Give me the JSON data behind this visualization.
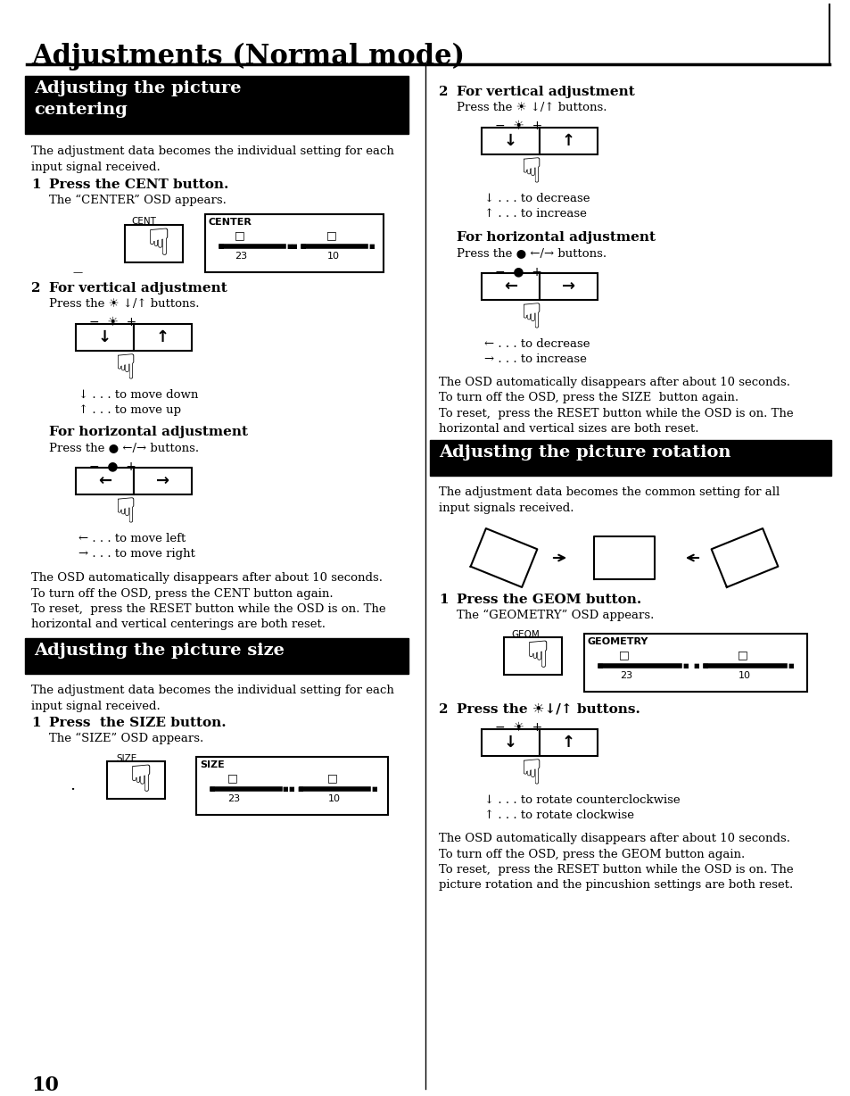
{
  "title": "Adjustments (Normal mode)",
  "bg_color": "#ffffff",
  "page_number": "10",
  "sec1_header": "Adjusting the picture\ncentering",
  "sec1_body": "The adjustment data becomes the individual setting for each\ninput signal received.",
  "step1_bold": "Press the CENT button.",
  "step1_sub": "The “CENTER” OSD appears.",
  "l_step2_bold": "For vertical adjustment",
  "l_step2_sub": "Press the ☀ ↓/↑ buttons.",
  "l_step2_down": "↓ . . . to move down",
  "l_step2_up": "↑ . . . to move up",
  "l_horiz_bold": "For horizontal adjustment",
  "l_horiz_sub": "Press the ● ←/→ buttons.",
  "l_horiz_left": "← . . . to move left",
  "l_horiz_right": "→ . . . to move right",
  "l_osd_note": "The OSD automatically disappears after about 10 seconds.\nTo turn off the OSD, press the CENT button again.",
  "l_reset_note": "To reset,  press the RESET button while the OSD is on. The\nhorizontal and vertical centerings are both reset.",
  "sec2_header": "Adjusting the picture size",
  "sec2_body": "The adjustment data becomes the individual setting for each\ninput signal received.",
  "size_step1_bold": "Press  the SIZE button.",
  "size_step1_sub": "The “SIZE” OSD appears.",
  "r_step2_bold": "For vertical adjustment",
  "r_step2_sub": "Press the ☀ ↓/↑ buttons.",
  "r_step2_down": "↓ . . . to decrease",
  "r_step2_up": "↑ . . . to increase",
  "r_horiz_bold": "For horizontal adjustment",
  "r_horiz_sub": "Press the ● ←/→ buttons.",
  "r_horiz_left": "← . . . to decrease",
  "r_horiz_right": "→ . . . to increase",
  "r_osd_note": "The OSD automatically disappears after about 10 seconds.\nTo turn off the OSD, press the SIZE  button again.",
  "r_reset_note": "To reset,  press the RESET button while the OSD is on. The\nhorizontal and vertical sizes are both reset.",
  "sec3_header": "Adjusting the picture rotation",
  "sec3_body": "The adjustment data becomes the common setting for all\ninput signals received.",
  "geom_step1_bold": "Press the GEOM button.",
  "geom_step1_sub": "The “GEOMETRY” OSD appears.",
  "geom_step2_bold": "Press the ☀↓/↑ buttons.",
  "geom_down": "↓ . . . to rotate counterclockwise",
  "geom_up": "↑ . . . to rotate clockwise",
  "geom_osd_note": "The OSD automatically disappears after about 10 seconds.\nTo turn off the OSD, press the GEOM button again.",
  "geom_reset_note": "To reset,  press the RESET button while the OSD is on. The\npicture rotation and the pincushion settings are both reset."
}
